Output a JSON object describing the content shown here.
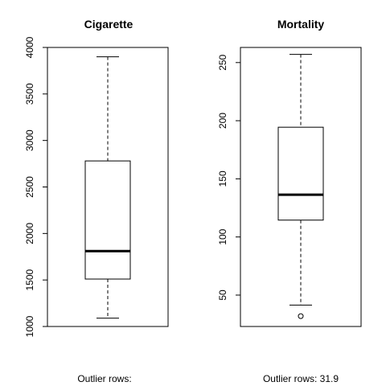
{
  "chart_data": [
    {
      "type": "box",
      "title": "Cigarette",
      "ylim": [
        1000,
        4000
      ],
      "yticks": [
        "1000",
        "1500",
        "2000",
        "2500",
        "3000",
        "3500",
        "4000"
      ],
      "box": {
        "whisker_low": 1090,
        "q1": 1510,
        "median": 1810,
        "q3": 2780,
        "whisker_high": 3900
      },
      "outliers": [],
      "caption": "Outlier rows:"
    },
    {
      "type": "box",
      "title": "Mortality",
      "ylim": [
        23,
        263
      ],
      "yticks": [
        "50",
        "100",
        "150",
        "200",
        "250"
      ],
      "box": {
        "whisker_low": 41.4,
        "q1": 114.5,
        "median": 136.3,
        "q3": 194.4,
        "whisker_high": 257
      },
      "outliers": [
        31.9
      ],
      "caption": "Outlier rows:  31.9"
    }
  ]
}
